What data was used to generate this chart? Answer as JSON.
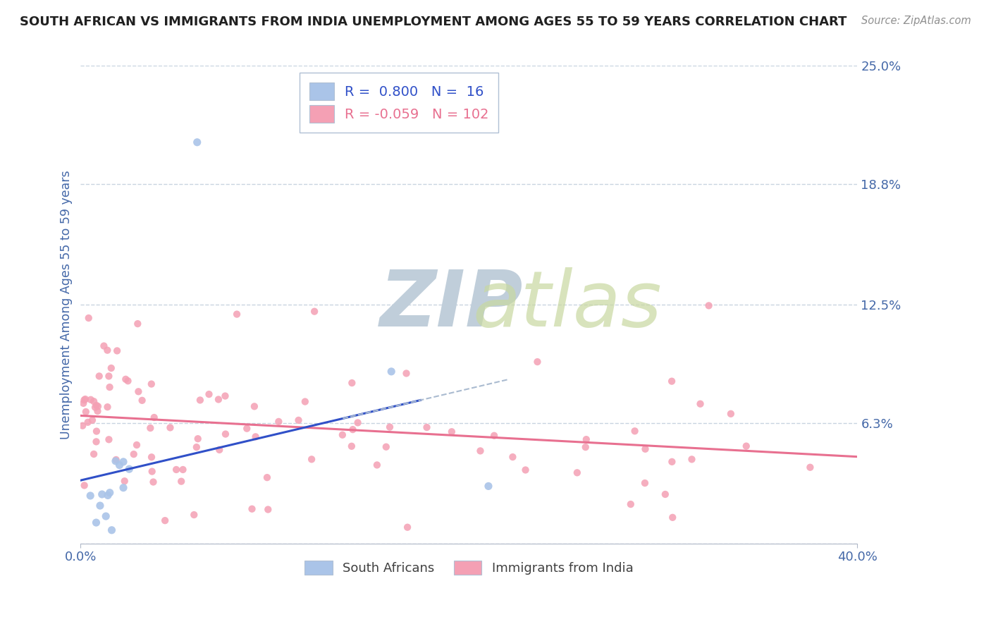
{
  "title": "SOUTH AFRICAN VS IMMIGRANTS FROM INDIA UNEMPLOYMENT AMONG AGES 55 TO 59 YEARS CORRELATION CHART",
  "source": "Source: ZipAtlas.com",
  "ylabel": "Unemployment Among Ages 55 to 59 years",
  "xlim": [
    0.0,
    0.4
  ],
  "ylim": [
    -0.01,
    0.265
  ],
  "plot_ylim": [
    0.0,
    0.25
  ],
  "R_sa": 0.8,
  "N_sa": 16,
  "R_india": -0.059,
  "N_india": 102,
  "sa_scatter_color": "#aac4e8",
  "india_scatter_color": "#f4a0b4",
  "sa_line_color": "#3050c8",
  "india_line_color": "#e87090",
  "sa_line_style": "solid",
  "india_line_style": "solid",
  "sa_dashed_color": "#a0b8d8",
  "watermark_color": "#d0dce8",
  "background_color": "#ffffff",
  "grid_color": "#c8d4e0",
  "legend_border_color": "#b0c0d4",
  "title_color": "#202020",
  "tick_label_color": "#4468a8",
  "source_color": "#909090",
  "bottom_legend_color": "#404040",
  "ytick_positions": [
    0.0,
    0.063,
    0.125,
    0.188,
    0.25
  ],
  "ytick_labels": [
    "",
    "6.3%",
    "12.5%",
    "18.8%",
    "25.0%"
  ],
  "xtick_positions": [
    0.0,
    0.4
  ],
  "xtick_labels": [
    "0.0%",
    "40.0%"
  ]
}
